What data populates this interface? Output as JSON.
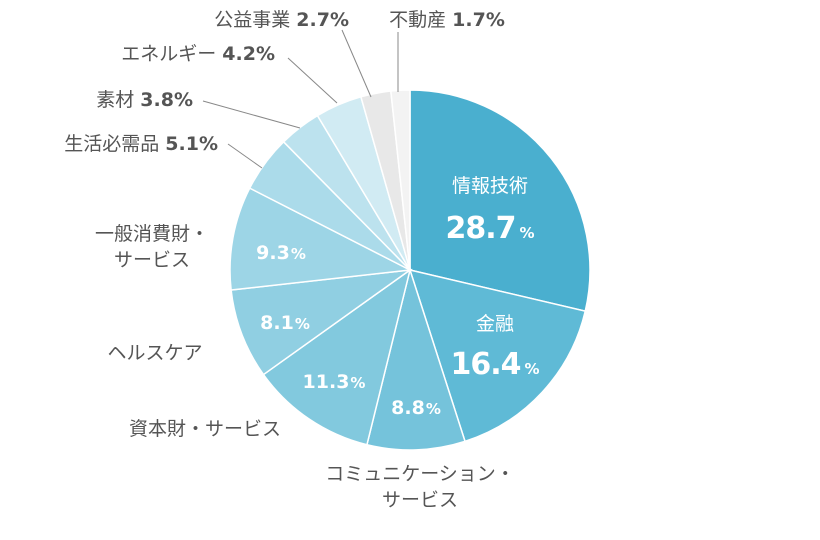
{
  "chart_data": {
    "type": "pie",
    "title": "",
    "slices": [
      {
        "label": "情報技術",
        "value": 28.7,
        "display": "28.7",
        "unit": "%",
        "color": "#4aafcf"
      },
      {
        "label": "金融",
        "value": 16.4,
        "display": "16.4",
        "unit": "%",
        "color": "#5fbad6"
      },
      {
        "label": "コミュニケーション・サービス",
        "value": 8.8,
        "display": "8.8",
        "unit": "%",
        "color": "#75c3db"
      },
      {
        "label": "資本財・サービス",
        "value": 11.3,
        "display": "11.3",
        "unit": "%",
        "color": "#82c9de"
      },
      {
        "label": "ヘルスケア",
        "value": 8.1,
        "display": "8.1",
        "unit": "%",
        "color": "#90cfe2"
      },
      {
        "label": "一般消費財・サービス",
        "value": 9.3,
        "display": "9.3",
        "unit": "%",
        "color": "#9dd5e6"
      },
      {
        "label": "生活必需品",
        "value": 5.1,
        "display": "5.1%",
        "unit": "",
        "color": "#abdbea"
      },
      {
        "label": "素材",
        "value": 3.8,
        "display": "3.8%",
        "unit": "",
        "color": "#bce2ee"
      },
      {
        "label": "エネルギー",
        "value": 4.2,
        "display": "4.2%",
        "unit": "",
        "color": "#d1ebf3"
      },
      {
        "label": "公益事業",
        "value": 2.7,
        "display": "2.7%",
        "unit": "",
        "color": "#e8e8e8"
      },
      {
        "label": "不動産",
        "value": 1.7,
        "display": "1.7%",
        "unit": "",
        "color": "#f3f3f3"
      }
    ]
  }
}
